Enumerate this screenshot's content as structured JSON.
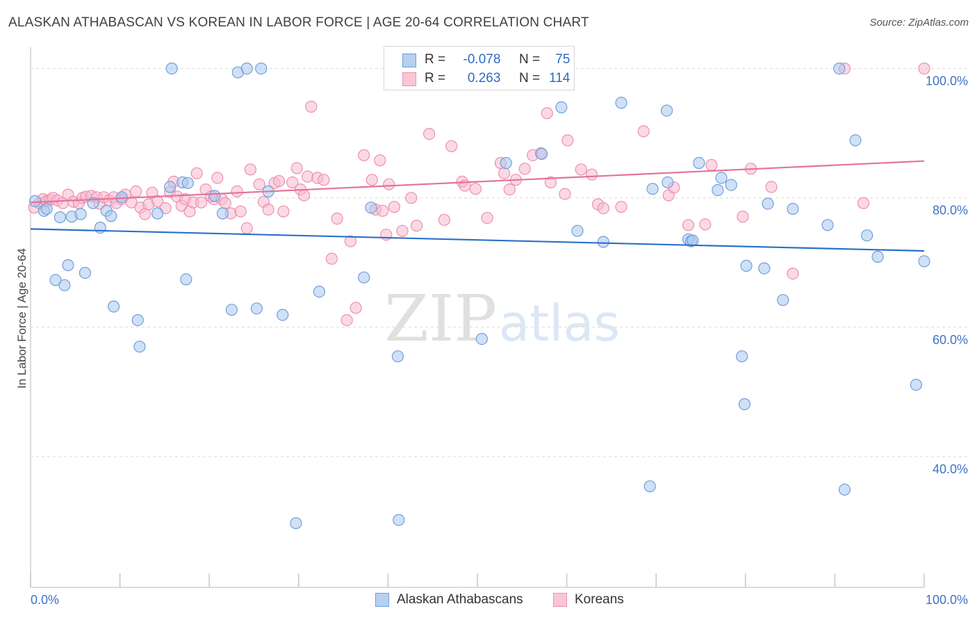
{
  "header": {
    "title": "ALASKAN ATHABASCAN VS KOREAN IN LABOR FORCE | AGE 20-64 CORRELATION CHART",
    "source": "Source: ZipAtlas.com"
  },
  "watermark": {
    "part1": "ZIP",
    "part2": "atlas"
  },
  "legend": {
    "series1": {
      "r_label": "R =",
      "r_value": "-0.078",
      "n_label": "N =",
      "n_value": "75"
    },
    "series2": {
      "r_label": "R =",
      "r_value": "0.263",
      "n_label": "N =",
      "n_value": "114"
    }
  },
  "bottom_legend": {
    "series1": "Alaskan Athabascans",
    "series2": "Koreans"
  },
  "colors": {
    "blue_fill": "#a9c7ee",
    "blue_stroke": "#6f9fdc",
    "blue_line": "#2b6fcb",
    "pink_fill": "#f7b9cd",
    "pink_stroke": "#ee8fae",
    "pink_line": "#e4729a",
    "axis_text": "#3f73c8",
    "grid": "#d9d9d9"
  },
  "chart_data": {
    "type": "scatter",
    "title": "ALASKAN ATHABASCAN VS KOREAN IN LABOR FORCE | AGE 20-64 CORRELATION CHART",
    "xlabel": "",
    "ylabel": "In Labor Force | Age 20-64",
    "xlim": [
      0,
      100
    ],
    "ylim": [
      20,
      102
    ],
    "x_tick_labels": [
      "0.0%",
      "100.0%"
    ],
    "y_ticks": [
      40,
      60,
      80,
      100
    ],
    "y_tick_labels": [
      "40.0%",
      "60.0%",
      "80.0%",
      "100.0%"
    ],
    "grid": true,
    "series": [
      {
        "name": "Alaskan Athabascans",
        "r": -0.078,
        "n": 75,
        "trend": {
          "x": [
            0,
            100
          ],
          "y": [
            75.2,
            71.8
          ]
        },
        "points": [
          [
            0.5,
            79.5
          ],
          [
            1.5,
            78
          ],
          [
            1.8,
            78.3
          ],
          [
            2.8,
            67.3
          ],
          [
            3.3,
            77
          ],
          [
            3.8,
            66.5
          ],
          [
            4.2,
            69.6
          ],
          [
            4.6,
            77.1
          ],
          [
            5.6,
            77.5
          ],
          [
            6.1,
            68.4
          ],
          [
            7.0,
            79.2
          ],
          [
            7.8,
            75.4
          ],
          [
            8.5,
            78
          ],
          [
            9.0,
            77.2
          ],
          [
            9.3,
            63.2
          ],
          [
            10.2,
            80.1
          ],
          [
            12.0,
            61.1
          ],
          [
            12.2,
            57
          ],
          [
            14.2,
            77.6
          ],
          [
            15.6,
            81.7
          ],
          [
            15.8,
            100
          ],
          [
            17.0,
            82.4
          ],
          [
            17.4,
            67.4
          ],
          [
            17.6,
            82.3
          ],
          [
            20.6,
            80.3
          ],
          [
            21.5,
            77.6
          ],
          [
            22.5,
            62.7
          ],
          [
            23.2,
            99.4
          ],
          [
            24.2,
            100
          ],
          [
            25.3,
            62.9
          ],
          [
            25.8,
            100
          ],
          [
            26.6,
            81
          ],
          [
            28.2,
            61.9
          ],
          [
            29.7,
            29.7
          ],
          [
            32.3,
            65.5
          ],
          [
            37.3,
            67.7
          ],
          [
            38.1,
            78.5
          ],
          [
            41.1,
            55.5
          ],
          [
            41.2,
            30.2
          ],
          [
            50.5,
            58.2
          ],
          [
            53.2,
            85.4
          ],
          [
            57.2,
            86.8
          ],
          [
            59.4,
            94
          ],
          [
            61.2,
            74.9
          ],
          [
            64.1,
            73.2
          ],
          [
            66.1,
            94.7
          ],
          [
            69.3,
            35.4
          ],
          [
            69.6,
            81.4
          ],
          [
            71.2,
            93.5
          ],
          [
            71.3,
            82.4
          ],
          [
            73.6,
            73.6
          ],
          [
            73.9,
            73.3
          ],
          [
            74.1,
            73.4
          ],
          [
            74.8,
            85.4
          ],
          [
            76.9,
            81.2
          ],
          [
            77.3,
            83.1
          ],
          [
            78.4,
            82
          ],
          [
            79.6,
            55.5
          ],
          [
            79.9,
            48.1
          ],
          [
            80.1,
            69.5
          ],
          [
            82.1,
            69.1
          ],
          [
            82.5,
            79.1
          ],
          [
            84.2,
            64.2
          ],
          [
            85.3,
            78.3
          ],
          [
            89.2,
            75.8
          ],
          [
            90.5,
            100
          ],
          [
            91.1,
            34.9
          ],
          [
            92.3,
            88.9
          ],
          [
            93.6,
            74.2
          ],
          [
            94.8,
            70.9
          ],
          [
            99.1,
            51.1
          ],
          [
            100.0,
            70.2
          ]
        ]
      },
      {
        "name": "Koreans",
        "r": 0.263,
        "n": 114,
        "trend": {
          "x": [
            0,
            100
          ],
          "y": [
            79.3,
            85.7
          ]
        },
        "points": [
          [
            0.4,
            78.5
          ],
          [
            1.0,
            79.2
          ],
          [
            1.4,
            79.8
          ],
          [
            1.8,
            79.5
          ],
          [
            2.2,
            79.7
          ],
          [
            2.5,
            80
          ],
          [
            3.0,
            79.6
          ],
          [
            3.6,
            79.2
          ],
          [
            4.2,
            80.5
          ],
          [
            4.8,
            79.4
          ],
          [
            5.4,
            79.2
          ],
          [
            5.8,
            80
          ],
          [
            6.2,
            80.2
          ],
          [
            6.8,
            80.3
          ],
          [
            7.4,
            80.1
          ],
          [
            7.7,
            79.1
          ],
          [
            8.2,
            80.1
          ],
          [
            8.8,
            79.6
          ],
          [
            9.3,
            80.1
          ],
          [
            9.6,
            79.2
          ],
          [
            10.2,
            79.8
          ],
          [
            10.6,
            80.5
          ],
          [
            11.3,
            79.3
          ],
          [
            11.8,
            81
          ],
          [
            12.3,
            78.5
          ],
          [
            12.8,
            77.5
          ],
          [
            13.2,
            79
          ],
          [
            13.6,
            80.8
          ],
          [
            14.2,
            79.5
          ],
          [
            15.1,
            78.4
          ],
          [
            15.6,
            80.9
          ],
          [
            16.0,
            82.5
          ],
          [
            16.4,
            80.2
          ],
          [
            16.9,
            78.8
          ],
          [
            17.3,
            79.8
          ],
          [
            17.8,
            77.9
          ],
          [
            18.2,
            79.3
          ],
          [
            18.6,
            83.8
          ],
          [
            19.1,
            79.3
          ],
          [
            19.6,
            81.3
          ],
          [
            20.2,
            80.2
          ],
          [
            20.5,
            79.8
          ],
          [
            20.9,
            83.1
          ],
          [
            21.4,
            79.8
          ],
          [
            21.8,
            79.2
          ],
          [
            22.4,
            77.6
          ],
          [
            23.1,
            81
          ],
          [
            23.5,
            77.9
          ],
          [
            24.2,
            75.3
          ],
          [
            24.6,
            84.4
          ],
          [
            25.6,
            82.1
          ],
          [
            26.1,
            79.4
          ],
          [
            26.6,
            78.2
          ],
          [
            27.3,
            82.3
          ],
          [
            27.8,
            82.6
          ],
          [
            28.3,
            77.9
          ],
          [
            29.3,
            82.4
          ],
          [
            29.8,
            84.6
          ],
          [
            30.2,
            81.3
          ],
          [
            30.6,
            80.4
          ],
          [
            31.0,
            83.3
          ],
          [
            31.4,
            94.1
          ],
          [
            32.1,
            83.1
          ],
          [
            32.8,
            82.8
          ],
          [
            33.7,
            70.6
          ],
          [
            34.3,
            76.8
          ],
          [
            35.4,
            61.1
          ],
          [
            35.8,
            73.3
          ],
          [
            36.4,
            63
          ],
          [
            37.3,
            86.6
          ],
          [
            38.2,
            82.8
          ],
          [
            38.6,
            78.2
          ],
          [
            39.1,
            85.8
          ],
          [
            39.4,
            78
          ],
          [
            39.8,
            74.3
          ],
          [
            40.1,
            82.1
          ],
          [
            40.7,
            78.6
          ],
          [
            41.6,
            74.9
          ],
          [
            42.6,
            80
          ],
          [
            43.2,
            75.7
          ],
          [
            44.6,
            89.9
          ],
          [
            46.3,
            76.6
          ],
          [
            47.1,
            88
          ],
          [
            48.3,
            82.5
          ],
          [
            48.6,
            81.9
          ],
          [
            49.8,
            81.4
          ],
          [
            51.1,
            76.9
          ],
          [
            52.6,
            85.4
          ],
          [
            53.0,
            83.8
          ],
          [
            53.6,
            81.3
          ],
          [
            54.3,
            82.8
          ],
          [
            55.3,
            84.5
          ],
          [
            56.2,
            86.6
          ],
          [
            57.1,
            86.9
          ],
          [
            57.8,
            93.1
          ],
          [
            58.2,
            82.4
          ],
          [
            59.8,
            80.6
          ],
          [
            60.1,
            88.9
          ],
          [
            61.6,
            84.4
          ],
          [
            62.8,
            83.6
          ],
          [
            63.5,
            79
          ],
          [
            64.1,
            78.4
          ],
          [
            66.1,
            78.6
          ],
          [
            68.6,
            90.3
          ],
          [
            71.4,
            80.4
          ],
          [
            72.0,
            81.6
          ],
          [
            73.6,
            75.8
          ],
          [
            75.5,
            75.9
          ],
          [
            76.2,
            85.1
          ],
          [
            79.7,
            77.1
          ],
          [
            80.6,
            84.5
          ],
          [
            82.9,
            81.7
          ],
          [
            85.3,
            68.3
          ],
          [
            91.1,
            100
          ],
          [
            93.2,
            79.2
          ],
          [
            100.0,
            100
          ]
        ]
      }
    ]
  }
}
